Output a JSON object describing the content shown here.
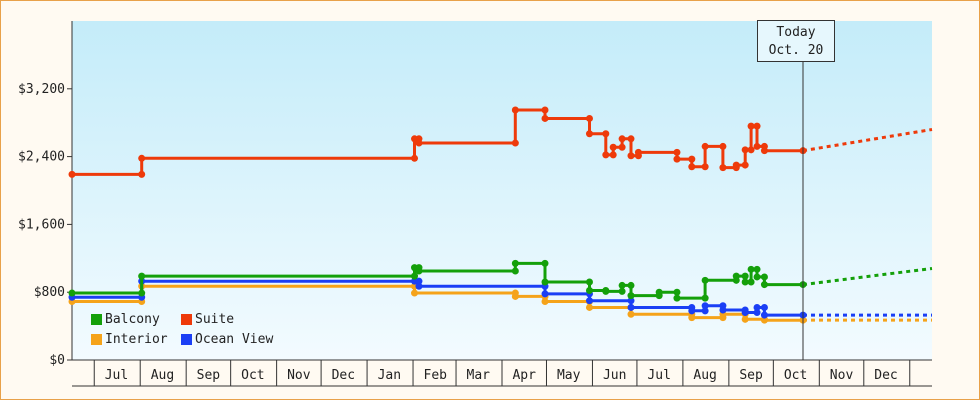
{
  "chart_data": {
    "type": "line",
    "step": true,
    "x_start": "2011-06-15",
    "x_end": "2013-01-15",
    "ylim": [
      0,
      4000
    ],
    "yticks": [
      0,
      800,
      1600,
      2400,
      3200
    ],
    "ytick_labels": [
      "$0",
      "$800",
      "$1,600",
      "$2,400",
      "$3,200"
    ],
    "month_ticks": [
      "2011-06-30",
      "2011-07-31",
      "2011-08-31",
      "2011-09-30",
      "2011-10-31",
      "2011-11-30",
      "2011-12-31",
      "2012-01-31",
      "2012-02-29",
      "2012-03-31",
      "2012-04-30",
      "2012-05-31",
      "2012-06-30",
      "2012-07-31",
      "2012-08-31",
      "2012-09-30",
      "2012-10-31",
      "2012-11-30",
      "2012-12-31"
    ],
    "month_labels": [
      {
        "label": "Jul",
        "date": "2011-07-15"
      },
      {
        "label": "Aug",
        "date": "2011-08-15"
      },
      {
        "label": "Sep",
        "date": "2011-09-15"
      },
      {
        "label": "Oct",
        "date": "2011-10-15"
      },
      {
        "label": "Nov",
        "date": "2011-11-15"
      },
      {
        "label": "Dec",
        "date": "2011-12-15"
      },
      {
        "label": "Jan",
        "date": "2012-01-15"
      },
      {
        "label": "Feb",
        "date": "2012-02-15"
      },
      {
        "label": "Mar",
        "date": "2012-03-15"
      },
      {
        "label": "Apr",
        "date": "2012-04-15"
      },
      {
        "label": "May",
        "date": "2012-05-15"
      },
      {
        "label": "Jun",
        "date": "2012-06-15"
      },
      {
        "label": "Jul",
        "date": "2012-07-15"
      },
      {
        "label": "Aug",
        "date": "2012-08-15"
      },
      {
        "label": "Sep",
        "date": "2012-09-15"
      },
      {
        "label": "Oct",
        "date": "2012-10-15"
      },
      {
        "label": "Nov",
        "date": "2012-11-15"
      },
      {
        "label": "Dec",
        "date": "2012-12-15"
      }
    ],
    "today": {
      "date": "2012-10-20",
      "line1": "Today",
      "line2": "Oct. 20"
    },
    "series": [
      {
        "name": "Suite",
        "color": "#ee3a0a",
        "points": [
          [
            "2011-06-15",
            2190
          ],
          [
            "2011-08-01",
            2190
          ],
          [
            "2011-08-01",
            2380
          ],
          [
            "2012-02-01",
            2380
          ],
          [
            "2012-02-01",
            2610
          ],
          [
            "2012-02-04",
            2610
          ],
          [
            "2012-02-04",
            2560
          ],
          [
            "2012-04-09",
            2560
          ],
          [
            "2012-04-09",
            2950
          ],
          [
            "2012-04-29",
            2950
          ],
          [
            "2012-04-29",
            2850
          ],
          [
            "2012-05-29",
            2850
          ],
          [
            "2012-05-29",
            2670
          ],
          [
            "2012-06-09",
            2670
          ],
          [
            "2012-06-09",
            2420
          ],
          [
            "2012-06-14",
            2420
          ],
          [
            "2012-06-14",
            2510
          ],
          [
            "2012-06-20",
            2510
          ],
          [
            "2012-06-20",
            2610
          ],
          [
            "2012-06-26",
            2610
          ],
          [
            "2012-06-26",
            2410
          ],
          [
            "2012-07-01",
            2410
          ],
          [
            "2012-07-01",
            2450
          ],
          [
            "2012-07-27",
            2450
          ],
          [
            "2012-07-27",
            2370
          ],
          [
            "2012-08-06",
            2370
          ],
          [
            "2012-08-06",
            2280
          ],
          [
            "2012-08-15",
            2280
          ],
          [
            "2012-08-15",
            2520
          ],
          [
            "2012-08-27",
            2520
          ],
          [
            "2012-08-27",
            2270
          ],
          [
            "2012-09-05",
            2270
          ],
          [
            "2012-09-05",
            2300
          ],
          [
            "2012-09-11",
            2300
          ],
          [
            "2012-09-11",
            2480
          ],
          [
            "2012-09-15",
            2480
          ],
          [
            "2012-09-15",
            2760
          ],
          [
            "2012-09-19",
            2760
          ],
          [
            "2012-09-19",
            2520
          ],
          [
            "2012-09-24",
            2520
          ],
          [
            "2012-09-24",
            2470
          ],
          [
            "2012-10-20",
            2470
          ]
        ],
        "forecast": [
          [
            "2012-10-20",
            2470
          ],
          [
            "2013-01-15",
            2720
          ]
        ]
      },
      {
        "name": "Balcony",
        "color": "#14a00a",
        "points": [
          [
            "2011-06-15",
            790
          ],
          [
            "2011-08-01",
            790
          ],
          [
            "2011-08-01",
            990
          ],
          [
            "2012-02-01",
            990
          ],
          [
            "2012-02-01",
            1090
          ],
          [
            "2012-02-04",
            1090
          ],
          [
            "2012-02-04",
            1050
          ],
          [
            "2012-04-09",
            1050
          ],
          [
            "2012-04-09",
            1140
          ],
          [
            "2012-04-29",
            1140
          ],
          [
            "2012-04-29",
            920
          ],
          [
            "2012-05-29",
            920
          ],
          [
            "2012-05-29",
            820
          ],
          [
            "2012-06-09",
            820
          ],
          [
            "2012-06-09",
            810
          ],
          [
            "2012-06-20",
            810
          ],
          [
            "2012-06-20",
            880
          ],
          [
            "2012-06-26",
            880
          ],
          [
            "2012-06-26",
            760
          ],
          [
            "2012-07-15",
            760
          ],
          [
            "2012-07-15",
            800
          ],
          [
            "2012-07-27",
            800
          ],
          [
            "2012-07-27",
            730
          ],
          [
            "2012-08-15",
            730
          ],
          [
            "2012-08-15",
            940
          ],
          [
            "2012-09-05",
            940
          ],
          [
            "2012-09-05",
            990
          ],
          [
            "2012-09-11",
            990
          ],
          [
            "2012-09-11",
            920
          ],
          [
            "2012-09-15",
            920
          ],
          [
            "2012-09-15",
            1070
          ],
          [
            "2012-09-19",
            1070
          ],
          [
            "2012-09-19",
            980
          ],
          [
            "2012-09-24",
            980
          ],
          [
            "2012-09-24",
            890
          ],
          [
            "2012-10-20",
            890
          ]
        ],
        "forecast": [
          [
            "2012-10-20",
            890
          ],
          [
            "2013-01-15",
            1080
          ]
        ]
      },
      {
        "name": "Ocean View",
        "color": "#1a3ff5",
        "points": [
          [
            "2011-06-15",
            740
          ],
          [
            "2011-08-01",
            740
          ],
          [
            "2011-08-01",
            930
          ],
          [
            "2012-02-01",
            930
          ],
          [
            "2012-02-04",
            930
          ],
          [
            "2012-02-04",
            870
          ],
          [
            "2012-04-29",
            870
          ],
          [
            "2012-04-29",
            780
          ],
          [
            "2012-05-29",
            780
          ],
          [
            "2012-05-29",
            700
          ],
          [
            "2012-06-26",
            700
          ],
          [
            "2012-06-26",
            620
          ],
          [
            "2012-08-06",
            620
          ],
          [
            "2012-08-06",
            580
          ],
          [
            "2012-08-15",
            580
          ],
          [
            "2012-08-15",
            640
          ],
          [
            "2012-08-27",
            640
          ],
          [
            "2012-08-27",
            590
          ],
          [
            "2012-09-11",
            590
          ],
          [
            "2012-09-11",
            560
          ],
          [
            "2012-09-19",
            560
          ],
          [
            "2012-09-19",
            620
          ],
          [
            "2012-09-24",
            620
          ],
          [
            "2012-09-24",
            530
          ],
          [
            "2012-10-20",
            530
          ]
        ],
        "forecast": [
          [
            "2012-10-20",
            530
          ],
          [
            "2013-01-15",
            530
          ]
        ]
      },
      {
        "name": "Interior",
        "color": "#f5a31a",
        "points": [
          [
            "2011-06-15",
            690
          ],
          [
            "2011-08-01",
            690
          ],
          [
            "2011-08-01",
            870
          ],
          [
            "2012-02-01",
            870
          ],
          [
            "2012-02-01",
            790
          ],
          [
            "2012-04-09",
            790
          ],
          [
            "2012-04-09",
            750
          ],
          [
            "2012-04-29",
            750
          ],
          [
            "2012-04-29",
            690
          ],
          [
            "2012-05-29",
            690
          ],
          [
            "2012-05-29",
            620
          ],
          [
            "2012-06-26",
            620
          ],
          [
            "2012-06-26",
            540
          ],
          [
            "2012-08-06",
            540
          ],
          [
            "2012-08-06",
            500
          ],
          [
            "2012-08-27",
            500
          ],
          [
            "2012-08-27",
            540
          ],
          [
            "2012-09-11",
            540
          ],
          [
            "2012-09-11",
            480
          ],
          [
            "2012-09-24",
            480
          ],
          [
            "2012-09-24",
            470
          ],
          [
            "2012-10-20",
            470
          ]
        ],
        "forecast": [
          [
            "2012-10-20",
            470
          ],
          [
            "2013-01-15",
            470
          ]
        ]
      }
    ],
    "legend": [
      {
        "name": "Balcony",
        "color": "#14a00a"
      },
      {
        "name": "Suite",
        "color": "#ee3a0a"
      },
      {
        "name": "Interior",
        "color": "#f5a31a"
      },
      {
        "name": "Ocean View",
        "color": "#1a3ff5"
      }
    ],
    "grid": false,
    "background": "gradient light blue"
  }
}
